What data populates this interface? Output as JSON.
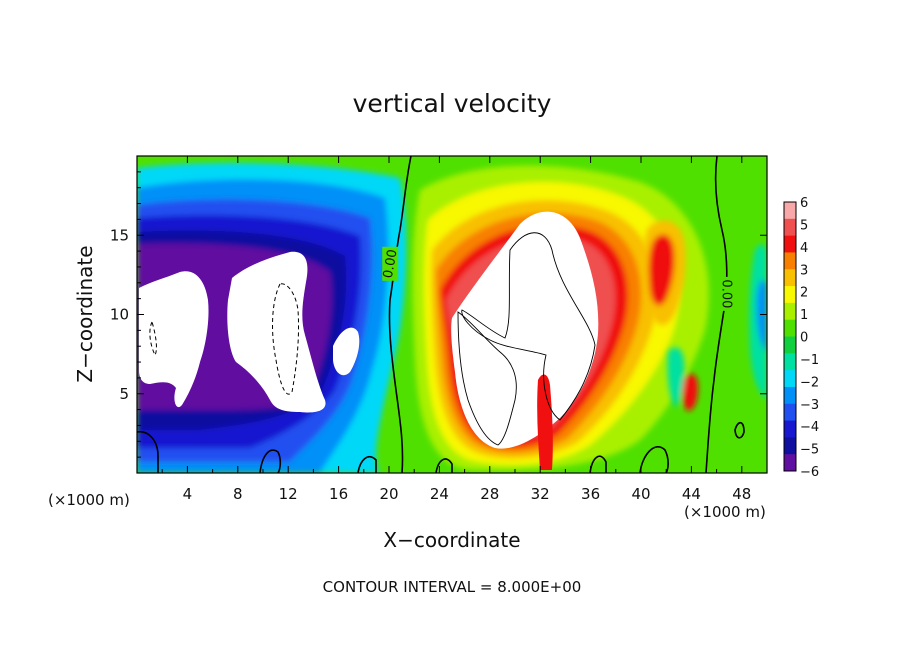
{
  "chart_data": {
    "type": "heatmap",
    "title": "vertical velocity",
    "xlabel": "X−coordinate",
    "ylabel": "Z−coordinate",
    "x_unit": "(×1000 m)",
    "z_unit": "(×1000 m)",
    "xlim": [
      0,
      50
    ],
    "ylim": [
      0,
      20
    ],
    "x_ticks": [
      {
        "value": 4,
        "label": "4"
      },
      {
        "value": 8,
        "label": "8"
      },
      {
        "value": 12,
        "label": "12"
      },
      {
        "value": 16,
        "label": "16"
      },
      {
        "value": 20,
        "label": "20"
      },
      {
        "value": 24,
        "label": "24"
      },
      {
        "value": 28,
        "label": "28"
      },
      {
        "value": 32,
        "label": "32"
      },
      {
        "value": 36,
        "label": "36"
      },
      {
        "value": 40,
        "label": "40"
      },
      {
        "value": 44,
        "label": "44"
      },
      {
        "value": 48,
        "label": "48"
      }
    ],
    "y_ticks": [
      {
        "value": 5,
        "label": "5"
      },
      {
        "value": 10,
        "label": "10"
      },
      {
        "value": 15,
        "label": "15"
      }
    ],
    "colorbar": {
      "labels": [
        "6",
        "5",
        "4",
        "3",
        "2",
        "1",
        "0",
        "−1",
        "−2",
        "−3",
        "−4",
        "−5",
        "−6"
      ],
      "colors": [
        "#f8a8a8",
        "#f05050",
        "#f01010",
        "#f88000",
        "#f8c000",
        "#f8f800",
        "#a8f000",
        "#50e000",
        "#10d040",
        "#00e0a0",
        "#00d8f8",
        "#0090f8",
        "#2050f0",
        "#1818d0",
        "#1010a0",
        "#6010a0"
      ]
    },
    "contour_labels": [
      {
        "text": "0.00",
        "x": 20.1,
        "z": 13.2
      },
      {
        "text": "0.00",
        "x": 46.8,
        "z": 11.3
      }
    ],
    "contour_interval_text": "CONTOUR INTERVAL = 8.000E+00"
  }
}
